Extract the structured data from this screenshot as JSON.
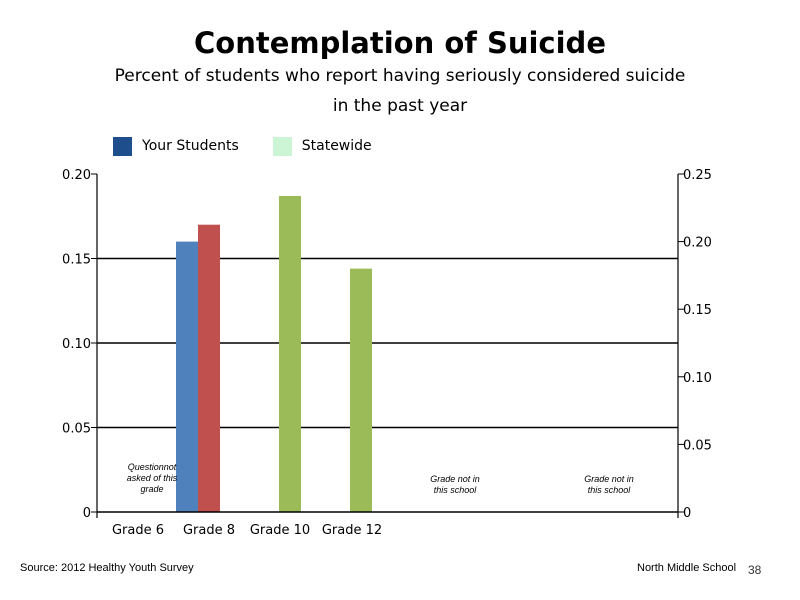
{
  "title": "Contemplation of Suicide",
  "subtitle_line1": "Percent of students who report having seriously considered suicide",
  "subtitle_line2": "in the past year",
  "legend": [
    {
      "label": "Your Students",
      "color": "#1f4e8c"
    },
    {
      "label": "Statewide",
      "color": "#ccf5d6"
    }
  ],
  "footer": {
    "source": "Source: 2012 Healthy Youth Survey",
    "school": "North Middle School",
    "page": "38"
  },
  "chart_data": {
    "type": "bar",
    "title": "Contemplation of Suicide",
    "categories": [
      "Grade 6",
      "Grade 8",
      "Grade 10",
      "Grade 12"
    ],
    "left_axis": {
      "ylim": [
        0,
        0.2
      ],
      "ticks": [
        "0",
        "0.05",
        "0.10",
        "0.15",
        "0.20"
      ]
    },
    "right_axis": {
      "ylim": [
        0,
        0.25
      ],
      "ticks": [
        "0",
        "0.05",
        "0.10",
        "0.15",
        "0.20",
        "0.25"
      ]
    },
    "grid": true,
    "bars": [
      {
        "category": "Grade 8",
        "value": 0.16,
        "color": "#4f81bd",
        "axis": "left"
      },
      {
        "category": "Grade 8",
        "value": 0.17,
        "color": "#c0504d",
        "axis": "left"
      },
      {
        "category": "Grade 10",
        "value": 0.187,
        "color": "#9bbb59",
        "axis": "left"
      },
      {
        "category": "Grade 12",
        "value": 0.144,
        "color": "#9bbb59",
        "axis": "left"
      }
    ],
    "annotations": [
      {
        "lines": [
          "Questionnot",
          "asked of this",
          "grade"
        ],
        "category": "Grade 6"
      },
      {
        "lines": [
          "Grade not in",
          "this school"
        ],
        "category": "after Grade 12"
      },
      {
        "lines": [
          "Grade not in",
          "this school"
        ],
        "category": "far right"
      }
    ]
  }
}
